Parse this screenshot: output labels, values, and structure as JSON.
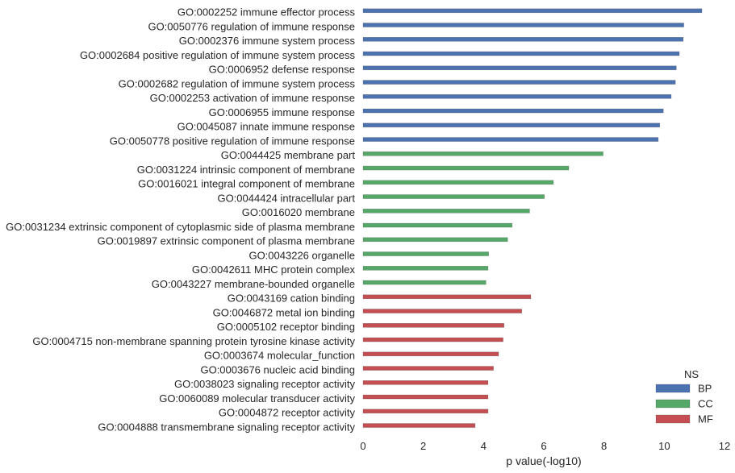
{
  "chart_data": {
    "type": "bar",
    "orientation": "horizontal",
    "xlabel": "p value(-log10)",
    "ylabel": "",
    "xlim": [
      0,
      12
    ],
    "xticks": [
      0,
      2,
      4,
      6,
      8,
      10,
      12
    ],
    "grid": false,
    "legend": {
      "title": "NS",
      "placement": "bottom-right",
      "entries": [
        {
          "name": "BP",
          "color": "#4c72b0"
        },
        {
          "name": "CC",
          "color": "#55a868"
        },
        {
          "name": "MF",
          "color": "#c44e52"
        }
      ]
    },
    "bars": [
      {
        "label": "GO:0002252 immune effector process",
        "value": 11.25,
        "ns": "BP"
      },
      {
        "label": "GO:0050776 regulation of immune response",
        "value": 10.65,
        "ns": "BP"
      },
      {
        "label": "GO:0002376 immune system process",
        "value": 10.63,
        "ns": "BP"
      },
      {
        "label": "GO:0002684 positive regulation of immune system process",
        "value": 10.5,
        "ns": "BP"
      },
      {
        "label": "GO:0006952 defense response",
        "value": 10.4,
        "ns": "BP"
      },
      {
        "label": "GO:0002682 regulation of immune system process",
        "value": 10.37,
        "ns": "BP"
      },
      {
        "label": "GO:0002253 activation of immune response",
        "value": 10.23,
        "ns": "BP"
      },
      {
        "label": "GO:0006955 immune response",
        "value": 9.97,
        "ns": "BP"
      },
      {
        "label": "GO:0045087 innate immune response",
        "value": 9.85,
        "ns": "BP"
      },
      {
        "label": "GO:0050778 positive regulation of immune response",
        "value": 9.8,
        "ns": "BP"
      },
      {
        "label": "GO:0044425 membrane part",
        "value": 7.97,
        "ns": "CC"
      },
      {
        "label": "GO:0031224 intrinsic component of membrane",
        "value": 6.83,
        "ns": "CC"
      },
      {
        "label": "GO:0016021 integral component of membrane",
        "value": 6.32,
        "ns": "CC"
      },
      {
        "label": "GO:0044424 intracellular part",
        "value": 6.02,
        "ns": "CC"
      },
      {
        "label": "GO:0016020 membrane",
        "value": 5.53,
        "ns": "CC"
      },
      {
        "label": "GO:0031234 extrinsic component of cytoplasmic side of plasma membrane",
        "value": 4.95,
        "ns": "CC"
      },
      {
        "label": "GO:0019897 extrinsic component of plasma membrane",
        "value": 4.8,
        "ns": "CC"
      },
      {
        "label": "GO:0043226 organelle",
        "value": 4.17,
        "ns": "CC"
      },
      {
        "label": "GO:0042611 MHC protein complex",
        "value": 4.15,
        "ns": "CC"
      },
      {
        "label": "GO:0043227 membrane-bounded organelle",
        "value": 4.08,
        "ns": "CC"
      },
      {
        "label": "GO:0043169 cation binding",
        "value": 5.57,
        "ns": "MF"
      },
      {
        "label": "GO:0046872 metal ion binding",
        "value": 5.27,
        "ns": "MF"
      },
      {
        "label": "GO:0005102 receptor binding",
        "value": 4.68,
        "ns": "MF"
      },
      {
        "label": "GO:0004715 non-membrane spanning protein tyrosine kinase activity",
        "value": 4.65,
        "ns": "MF"
      },
      {
        "label": "GO:0003674 molecular_function",
        "value": 4.5,
        "ns": "MF"
      },
      {
        "label": "GO:0003676 nucleic acid binding",
        "value": 4.33,
        "ns": "MF"
      },
      {
        "label": "GO:0038023 signaling receptor activity",
        "value": 4.15,
        "ns": "MF"
      },
      {
        "label": "GO:0060089 molecular transducer activity",
        "value": 4.15,
        "ns": "MF"
      },
      {
        "label": "GO:0004872 receptor activity",
        "value": 4.15,
        "ns": "MF"
      },
      {
        "label": "GO:0004888 transmembrane signaling receptor activity",
        "value": 3.72,
        "ns": "MF"
      }
    ]
  }
}
